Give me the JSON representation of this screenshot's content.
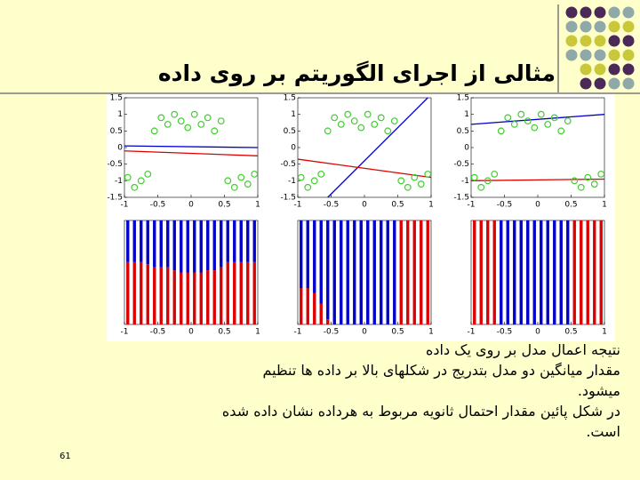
{
  "title": "مثالی از اجرای الگوریتم بر روی داده",
  "body": [
    "نتیجه اعمال مدل بر روی یک داده",
    "مقدار میانگین دو مدل بتدریج در شکلهای بالا بر داده ها تنظیم",
    "میشود.",
    "در شکل پائین مقدار احتمال ثانویه مربوط به هرداده نشان داده شده",
    "است."
  ],
  "page_number": "61",
  "figure": {
    "point_color": "#44cc33",
    "points": {
      "x": [
        -0.95,
        -0.85,
        -0.75,
        -0.65,
        -0.55,
        -0.45,
        -0.35,
        -0.25,
        -0.15,
        -0.05,
        0.05,
        0.15,
        0.25,
        0.35,
        0.45,
        0.55,
        0.65,
        0.75,
        0.85,
        0.95
      ],
      "y": [
        -0.9,
        -1.2,
        -1.0,
        -0.8,
        0.5,
        0.9,
        0.7,
        1.0,
        0.8,
        0.6,
        1.0,
        0.7,
        0.9,
        0.5,
        0.8,
        -1.0,
        -1.2,
        -0.9,
        -1.1,
        -0.8
      ]
    },
    "scatter_axes": {
      "xlim": [
        -1,
        1
      ],
      "ylim": [
        -1.5,
        1.5
      ],
      "xticks": [
        -1,
        -0.5,
        0,
        0.5,
        1
      ],
      "yticks": [
        -1.5,
        -1,
        -0.5,
        0,
        0.5,
        1,
        1.5
      ]
    },
    "bar_axes": {
      "xlim": [
        -1,
        1
      ],
      "ylim": [
        0,
        1
      ],
      "xticks": [
        -1,
        -0.5,
        0,
        0.5,
        1
      ]
    },
    "top": [
      {
        "lines": [
          {
            "color": "#0000cc",
            "x": [
              -1,
              1
            ],
            "y": [
              0.05,
              0.0
            ]
          },
          {
            "color": "#dd0000",
            "x": [
              -1,
              1
            ],
            "y": [
              -0.1,
              -0.25
            ]
          }
        ]
      },
      {
        "lines": [
          {
            "color": "#0000cc",
            "x": [
              -0.55,
              0.95
            ],
            "y": [
              -1.5,
              1.5
            ]
          },
          {
            "color": "#dd0000",
            "x": [
              -1,
              1
            ],
            "y": [
              -0.35,
              -0.9
            ]
          }
        ]
      },
      {
        "lines": [
          {
            "color": "#0000cc",
            "x": [
              -1,
              1
            ],
            "y": [
              0.7,
              1.0
            ]
          },
          {
            "color": "#dd0000",
            "x": [
              -1,
              1
            ],
            "y": [
              -1.0,
              -0.95
            ]
          }
        ]
      }
    ],
    "bar_colors": [
      "#dd0000",
      "#0000cc"
    ],
    "bottom": [
      {
        "red": [
          0.6,
          0.6,
          0.6,
          0.58,
          0.55,
          0.55,
          0.55,
          0.52,
          0.5,
          0.5,
          0.5,
          0.5,
          0.52,
          0.52,
          0.55,
          0.6,
          0.6,
          0.6,
          0.6,
          0.6
        ],
        "blue": [
          0.4,
          0.4,
          0.4,
          0.42,
          0.45,
          0.45,
          0.45,
          0.48,
          0.5,
          0.5,
          0.5,
          0.5,
          0.48,
          0.48,
          0.45,
          0.4,
          0.4,
          0.4,
          0.4,
          0.4
        ]
      },
      {
        "red": [
          0.35,
          0.35,
          0.3,
          0.2,
          0.05,
          0,
          0,
          0,
          0,
          0,
          0,
          0,
          0,
          0,
          0,
          1,
          1,
          1,
          1,
          1
        ],
        "blue": [
          0.65,
          0.65,
          0.7,
          0.8,
          0.95,
          1,
          1,
          1,
          1,
          1,
          1,
          1,
          1,
          1,
          1,
          0,
          0,
          0,
          0,
          0
        ]
      },
      {
        "red": [
          1,
          1,
          1,
          1,
          0,
          0,
          0,
          0,
          0,
          0,
          0,
          0,
          0,
          0,
          0,
          1,
          1,
          1,
          1,
          1
        ],
        "blue": [
          0,
          0,
          0,
          0,
          1,
          1,
          1,
          1,
          1,
          1,
          1,
          1,
          1,
          1,
          1,
          0,
          0,
          0,
          0,
          0
        ]
      }
    ]
  }
}
